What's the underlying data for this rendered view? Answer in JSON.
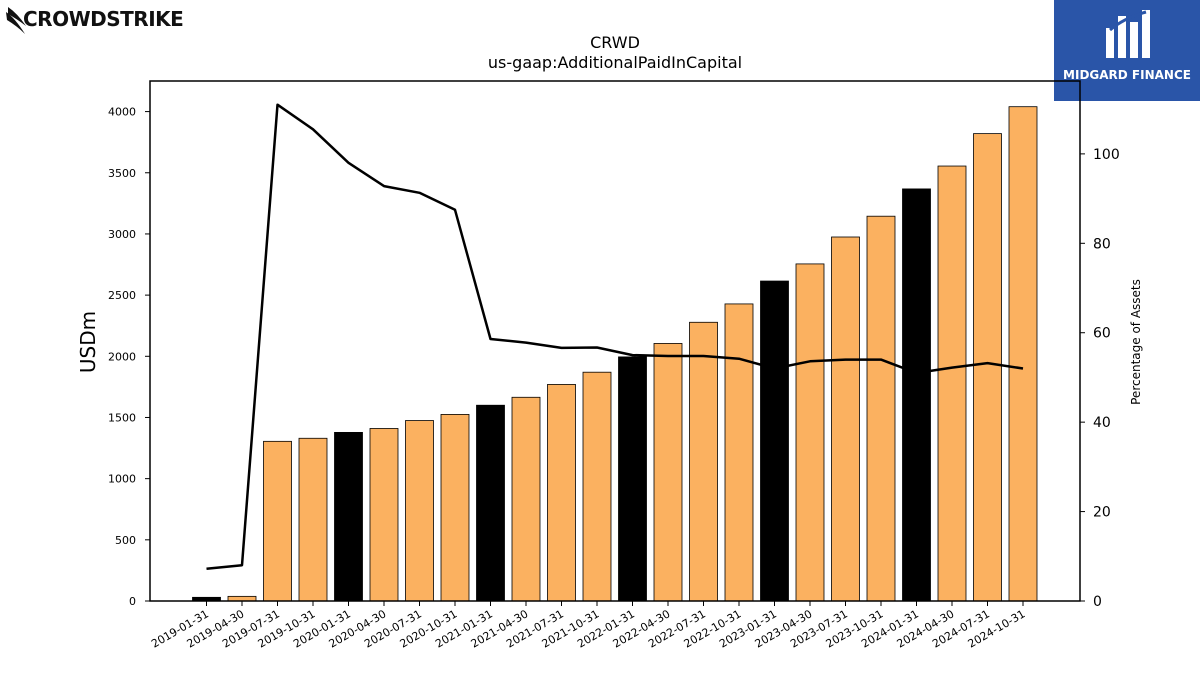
{
  "logos": {
    "left_text": "CROWDSTRIKE",
    "right_text": "MIDGARD FINANCE"
  },
  "colors": {
    "bar_regular": "#fbb160",
    "bar_fiscal_year_end": "#000000",
    "line": "#000000",
    "right_logo_bg": "#2a55a8"
  },
  "chart_data": {
    "type": "bar",
    "title": "CRWD",
    "subtitle": "us-gaap:AdditionalPaidInCapital",
    "ylabel": "USDm",
    "y2label": "Percentage of Assets",
    "ylim": [
      0,
      4250
    ],
    "y2lim": [
      0,
      116.3
    ],
    "yticks": [
      0,
      500,
      1000,
      1500,
      2000,
      2500,
      3000,
      3500,
      4000
    ],
    "y2ticks": [
      0,
      20,
      40,
      60,
      80,
      100
    ],
    "categories": [
      "2019-01-31",
      "2019-04-30",
      "2019-07-31",
      "2019-10-31",
      "2020-01-31",
      "2020-04-30",
      "2020-07-31",
      "2020-10-31",
      "2021-01-31",
      "2021-04-30",
      "2021-07-31",
      "2021-10-31",
      "2022-01-31",
      "2022-04-30",
      "2022-07-31",
      "2022-10-31",
      "2023-01-31",
      "2023-04-30",
      "2023-07-31",
      "2023-10-31",
      "2024-01-31",
      "2024-04-30",
      "2024-07-31",
      "2024-10-31"
    ],
    "series": [
      {
        "type": "bar",
        "values": [
          30,
          38,
          1305,
          1330,
          1378,
          1410,
          1475,
          1525,
          1600,
          1665,
          1770,
          1870,
          1995,
          2105,
          2278,
          2428,
          2615,
          2755,
          2975,
          3145,
          3368,
          3555,
          3820,
          4040
        ],
        "highlight": [
          true,
          false,
          false,
          false,
          true,
          false,
          false,
          false,
          true,
          false,
          false,
          false,
          true,
          false,
          false,
          false,
          true,
          false,
          false,
          false,
          true,
          false,
          false,
          false
        ]
      },
      {
        "type": "line",
        "axis": "right",
        "values": [
          7.2,
          8.0,
          111.0,
          105.5,
          98.0,
          92.8,
          91.3,
          87.5,
          58.6,
          57.8,
          56.6,
          56.7,
          55.0,
          54.8,
          54.8,
          54.2,
          52.0,
          53.6,
          54.0,
          54.0,
          51.0,
          52.2,
          53.2,
          52.0
        ]
      }
    ]
  }
}
